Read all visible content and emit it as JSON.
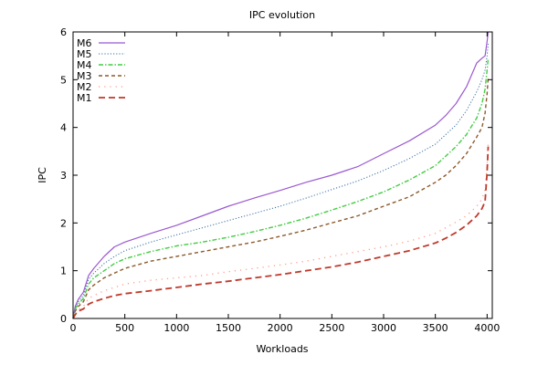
{
  "chart_data": {
    "type": "line",
    "title": "IPC evolution",
    "xlabel": "Workloads",
    "ylabel": "IPC",
    "xlim": [
      0,
      4050
    ],
    "ylim": [
      0,
      6
    ],
    "xticks": [
      "0",
      "500",
      "1000",
      "1500",
      "2000",
      "2500",
      "3000",
      "3500",
      "4000"
    ],
    "yticks": [
      "0",
      "1",
      "2",
      "3",
      "4",
      "5",
      "6"
    ],
    "grid": false,
    "legend_position": "top-left",
    "series": [
      {
        "name": "M6",
        "color": "#9b59d0",
        "style": "solid",
        "x": [
          0,
          20,
          50,
          100,
          150,
          200,
          300,
          400,
          500,
          750,
          1000,
          1250,
          1500,
          1750,
          2000,
          2250,
          2500,
          2750,
          3000,
          3250,
          3500,
          3600,
          3700,
          3800,
          3900,
          3950,
          3980,
          4000,
          4010
        ],
        "y": [
          0,
          0.25,
          0.4,
          0.55,
          0.9,
          1.05,
          1.3,
          1.5,
          1.6,
          1.78,
          1.95,
          2.15,
          2.35,
          2.52,
          2.68,
          2.85,
          3.0,
          3.18,
          3.45,
          3.72,
          4.05,
          4.25,
          4.5,
          4.85,
          5.35,
          5.45,
          5.5,
          5.8,
          6.0
        ]
      },
      {
        "name": "M5",
        "color": "#3a6ea5",
        "style": "dotted",
        "x": [
          0,
          20,
          50,
          100,
          150,
          200,
          300,
          400,
          500,
          750,
          1000,
          1250,
          1500,
          1750,
          2000,
          2250,
          2500,
          2750,
          3000,
          3250,
          3500,
          3600,
          3700,
          3800,
          3900,
          3950,
          3980,
          4000,
          4010
        ],
        "y": [
          0,
          0.22,
          0.35,
          0.48,
          0.82,
          0.95,
          1.15,
          1.3,
          1.42,
          1.6,
          1.75,
          1.9,
          2.05,
          2.2,
          2.35,
          2.52,
          2.7,
          2.88,
          3.1,
          3.35,
          3.65,
          3.85,
          4.05,
          4.35,
          4.75,
          5.0,
          5.2,
          5.5,
          5.75
        ]
      },
      {
        "name": "M4",
        "color": "#44cc44",
        "style": "dashdot",
        "x": [
          0,
          20,
          50,
          100,
          150,
          200,
          300,
          400,
          500,
          750,
          1000,
          1250,
          1500,
          1750,
          2000,
          2250,
          2500,
          2750,
          3000,
          3250,
          3500,
          3600,
          3700,
          3800,
          3900,
          3950,
          3980,
          4000,
          4010
        ],
        "y": [
          0,
          0.2,
          0.3,
          0.42,
          0.72,
          0.85,
          1.0,
          1.15,
          1.25,
          1.4,
          1.52,
          1.6,
          1.7,
          1.82,
          1.95,
          2.1,
          2.27,
          2.45,
          2.65,
          2.9,
          3.2,
          3.4,
          3.6,
          3.85,
          4.2,
          4.5,
          4.8,
          5.2,
          5.45
        ]
      },
      {
        "name": "M3",
        "color": "#8b5a2b",
        "style": "dashed",
        "x": [
          0,
          20,
          50,
          100,
          150,
          200,
          300,
          400,
          500,
          750,
          1000,
          1250,
          1500,
          1750,
          2000,
          2250,
          2500,
          2750,
          3000,
          3250,
          3500,
          3600,
          3700,
          3800,
          3900,
          3950,
          3980,
          4000,
          4010
        ],
        "y": [
          0,
          0.15,
          0.25,
          0.35,
          0.6,
          0.7,
          0.85,
          0.95,
          1.05,
          1.2,
          1.3,
          1.4,
          1.5,
          1.6,
          1.72,
          1.85,
          2.0,
          2.15,
          2.35,
          2.55,
          2.85,
          3.0,
          3.2,
          3.45,
          3.8,
          4.0,
          4.3,
          4.7,
          5.05
        ]
      },
      {
        "name": "M2",
        "color": "#ff9a8a",
        "style": "dotted-sparse",
        "x": [
          0,
          20,
          50,
          100,
          150,
          200,
          300,
          400,
          500,
          750,
          1000,
          1250,
          1500,
          1750,
          2000,
          2250,
          2500,
          2750,
          3000,
          3250,
          3500,
          3600,
          3700,
          3800,
          3900,
          3950,
          3980,
          4000,
          4010
        ],
        "y": [
          0,
          0.1,
          0.18,
          0.25,
          0.42,
          0.48,
          0.58,
          0.65,
          0.72,
          0.8,
          0.85,
          0.9,
          0.98,
          1.05,
          1.12,
          1.2,
          1.3,
          1.4,
          1.5,
          1.62,
          1.78,
          1.9,
          2.02,
          2.15,
          2.35,
          2.5,
          2.7,
          3.2,
          3.7
        ]
      },
      {
        "name": "M1",
        "color": "#c0392b",
        "style": "longdash",
        "x": [
          0,
          20,
          50,
          100,
          150,
          200,
          300,
          400,
          500,
          750,
          1000,
          1250,
          1500,
          1750,
          2000,
          2250,
          2500,
          2750,
          3000,
          3250,
          3500,
          3600,
          3700,
          3800,
          3900,
          3950,
          3980,
          4000,
          4010
        ],
        "y": [
          0,
          0.08,
          0.15,
          0.2,
          0.3,
          0.35,
          0.42,
          0.48,
          0.52,
          0.58,
          0.65,
          0.72,
          0.78,
          0.85,
          0.92,
          1.0,
          1.08,
          1.18,
          1.3,
          1.42,
          1.58,
          1.68,
          1.8,
          1.95,
          2.15,
          2.3,
          2.45,
          3.05,
          3.6
        ]
      }
    ]
  }
}
